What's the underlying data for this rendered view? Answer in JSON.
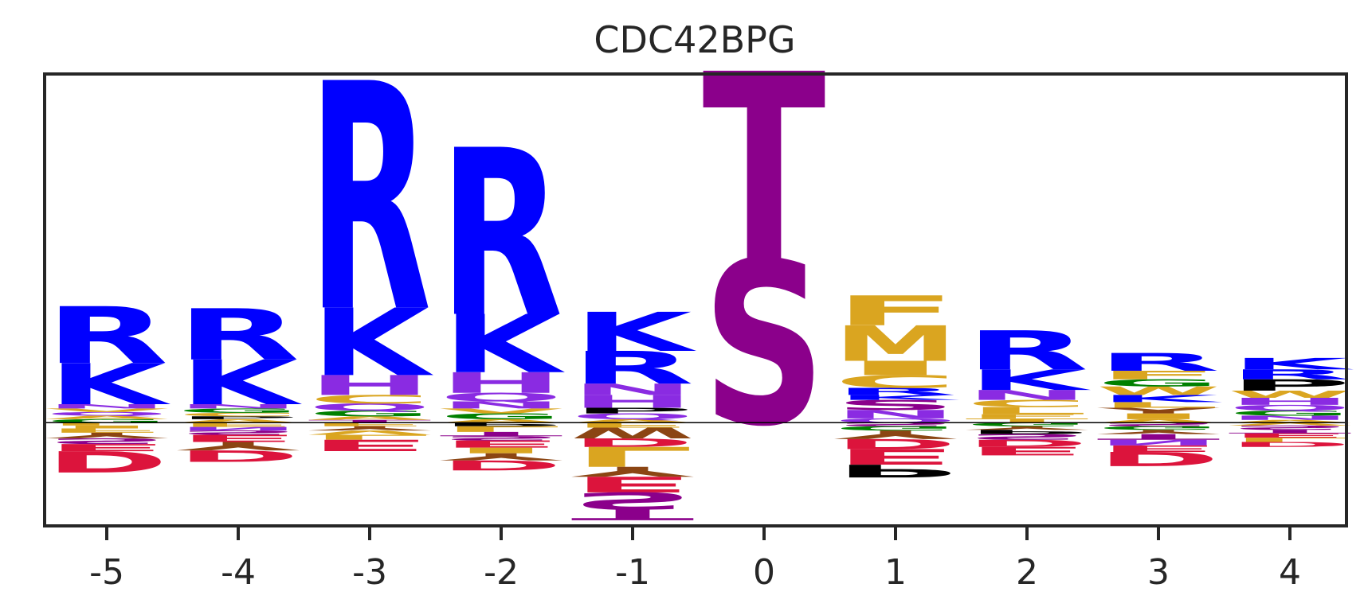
{
  "chart_data": {
    "type": "sequence-logo",
    "title": "CDC42BPG",
    "xlabel": "",
    "ylabel": "",
    "positions": [
      -5,
      -4,
      -3,
      -2,
      -1,
      0,
      1,
      2,
      3,
      4
    ],
    "ylim": [
      -1.45,
      4.9
    ],
    "grid": false,
    "colors": {
      "basic": "#0000ff",
      "acidic": "#dc143c",
      "polar_st": "#8b008b",
      "hydrophobic": "#daa520",
      "aromatic": "#8b4513",
      "polar_nq": "#8a2be2",
      "glycine": "#008000",
      "proline": "#000000"
    },
    "stacks": [
      {
        "pos": -5,
        "up": [
          [
            "G",
            0.05,
            "glycine"
          ],
          [
            "A",
            0.05,
            "hydrophobic"
          ],
          [
            "Q",
            0.05,
            "polar_nq"
          ],
          [
            "V",
            0.05,
            "hydrophobic"
          ],
          [
            "N",
            0.06,
            "polar_nq"
          ],
          [
            "K",
            0.58,
            "basic"
          ],
          [
            "R",
            0.8,
            "basic"
          ]
        ],
        "down": [
          [
            "L",
            0.04,
            "hydrophobic"
          ],
          [
            "I",
            0.04,
            "hydrophobic"
          ],
          [
            "F",
            0.06,
            "hydrophobic"
          ],
          [
            "Y",
            0.08,
            "aromatic"
          ],
          [
            "S",
            0.08,
            "polar_st"
          ],
          [
            "E",
            0.1,
            "acidic"
          ],
          [
            "D",
            0.3,
            "acidic"
          ]
        ]
      },
      {
        "pos": -4,
        "up": [
          [
            "A",
            0.05,
            "hydrophobic"
          ],
          [
            "P",
            0.04,
            "proline"
          ],
          [
            "C",
            0.05,
            "hydrophobic"
          ],
          [
            "G",
            0.06,
            "glycine"
          ],
          [
            "N",
            0.06,
            "polar_nq"
          ],
          [
            "K",
            0.63,
            "basic"
          ],
          [
            "R",
            0.72,
            "basic"
          ]
        ],
        "down": [
          [
            "F",
            0.06,
            "hydrophobic"
          ],
          [
            "N",
            0.05,
            "polar_nq"
          ],
          [
            "S",
            0.06,
            "polar_st"
          ],
          [
            "E",
            0.1,
            "acidic"
          ],
          [
            "Y",
            0.12,
            "aromatic"
          ],
          [
            "D",
            0.16,
            "acidic"
          ]
        ]
      },
      {
        "pos": -3,
        "up": [
          [
            "T",
            0.04,
            "polar_st"
          ],
          [
            "A",
            0.05,
            "hydrophobic"
          ],
          [
            "G",
            0.08,
            "glycine"
          ],
          [
            "Q",
            0.1,
            "polar_nq"
          ],
          [
            "C",
            0.12,
            "hydrophobic"
          ],
          [
            "H",
            0.28,
            "polar_nq"
          ],
          [
            "K",
            0.95,
            "basic"
          ],
          [
            "R",
            3.2,
            "basic"
          ]
        ],
        "down": [
          [
            "F",
            0.05,
            "hydrophobic"
          ],
          [
            "Y",
            0.06,
            "aromatic"
          ],
          [
            "V",
            0.06,
            "hydrophobic"
          ],
          [
            "L",
            0.07,
            "hydrophobic"
          ],
          [
            "E",
            0.16,
            "acidic"
          ]
        ]
      },
      {
        "pos": -2,
        "up": [
          [
            "A",
            0.05,
            "hydrophobic"
          ],
          [
            "G",
            0.08,
            "glycine"
          ],
          [
            "V",
            0.07,
            "hydrophobic"
          ],
          [
            "N",
            0.1,
            "polar_nq"
          ],
          [
            "Q",
            0.12,
            "polar_nq"
          ],
          [
            "H",
            0.29,
            "polar_nq"
          ],
          [
            "K",
            0.82,
            "basic"
          ],
          [
            "R",
            2.35,
            "basic"
          ]
        ],
        "down": [
          [
            "P",
            0.05,
            "proline"
          ],
          [
            "L",
            0.08,
            "hydrophobic"
          ],
          [
            "T",
            0.06,
            "polar_st"
          ],
          [
            "S",
            0.06,
            "polar_st"
          ],
          [
            "E",
            0.1,
            "acidic"
          ],
          [
            "I",
            0.08,
            "hydrophobic"
          ],
          [
            "Y",
            0.1,
            "aromatic"
          ],
          [
            "D",
            0.14,
            "acidic"
          ]
        ]
      },
      {
        "pos": -1,
        "up": [
          [
            "A",
            0.05,
            "hydrophobic"
          ],
          [
            "Q",
            0.08,
            "polar_nq"
          ],
          [
            "P",
            0.08,
            "proline"
          ],
          [
            "H",
            0.18,
            "polar_nq"
          ],
          [
            "N",
            0.16,
            "polar_nq"
          ],
          [
            "R",
            0.46,
            "basic"
          ],
          [
            "K",
            0.55,
            "basic"
          ]
        ],
        "down": [
          [
            "F",
            0.07,
            "hydrophobic"
          ],
          [
            "W",
            0.15,
            "aromatic"
          ],
          [
            "D",
            0.12,
            "acidic"
          ],
          [
            "L",
            0.28,
            "hydrophobic"
          ],
          [
            "Y",
            0.14,
            "aromatic"
          ],
          [
            "E",
            0.22,
            "acidic"
          ],
          [
            "S",
            0.24,
            "polar_st"
          ],
          [
            "T",
            0.15,
            "polar_st"
          ]
        ]
      },
      {
        "pos": 0,
        "up": [
          [
            "S",
            2.3,
            "polar_st"
          ],
          [
            "T",
            2.65,
            "polar_st"
          ]
        ],
        "down": []
      },
      {
        "pos": 1,
        "up": [
          [
            "Q",
            0.06,
            "polar_nq"
          ],
          [
            "N",
            0.12,
            "polar_nq"
          ],
          [
            "S",
            0.14,
            "polar_st"
          ],
          [
            "K",
            0.07,
            "basic"
          ],
          [
            "R",
            0.1,
            "basic"
          ],
          [
            "C",
            0.18,
            "hydrophobic"
          ],
          [
            "I",
            0.2,
            "hydrophobic"
          ],
          [
            "M",
            0.5,
            "hydrophobic"
          ],
          [
            "F",
            0.42,
            "hydrophobic"
          ]
        ],
        "down": [
          [
            "S",
            0.05,
            "polar_st"
          ],
          [
            "G",
            0.06,
            "glycine"
          ],
          [
            "Y",
            0.12,
            "aromatic"
          ],
          [
            "D",
            0.14,
            "acidic"
          ],
          [
            "E",
            0.22,
            "acidic"
          ],
          [
            "P",
            0.18,
            "proline"
          ]
        ]
      },
      {
        "pos": 2,
        "up": [
          [
            "T",
            0.06,
            "hydrophobic"
          ],
          [
            "F",
            0.06,
            "hydrophobic"
          ],
          [
            "L",
            0.1,
            "hydrophobic"
          ],
          [
            "C",
            0.1,
            "hydrophobic"
          ],
          [
            "N",
            0.14,
            "polar_nq"
          ],
          [
            "K",
            0.29,
            "basic"
          ],
          [
            "R",
            0.55,
            "basic"
          ]
        ],
        "down": [
          [
            "G",
            0.05,
            "glycine"
          ],
          [
            "Y",
            0.05,
            "aromatic"
          ],
          [
            "P",
            0.06,
            "proline"
          ],
          [
            "S",
            0.08,
            "polar_st"
          ],
          [
            "D",
            0.1,
            "acidic"
          ],
          [
            "E",
            0.12,
            "acidic"
          ]
        ]
      },
      {
        "pos": 3,
        "up": [
          [
            "A",
            0.05,
            "hydrophobic"
          ],
          [
            "I",
            0.08,
            "hydrophobic"
          ],
          [
            "Y",
            0.08,
            "aromatic"
          ],
          [
            "L",
            0.08,
            "hydrophobic"
          ],
          [
            "K",
            0.1,
            "basic"
          ],
          [
            "W",
            0.12,
            "hydrophobic"
          ],
          [
            "G",
            0.1,
            "glycine"
          ],
          [
            "F",
            0.12,
            "hydrophobic"
          ],
          [
            "R",
            0.25,
            "basic"
          ]
        ],
        "down": [
          [
            "S",
            0.05,
            "polar_st"
          ],
          [
            "G",
            0.05,
            "glycine"
          ],
          [
            "Y",
            0.06,
            "aromatic"
          ],
          [
            "T",
            0.08,
            "polar_st"
          ],
          [
            "N",
            0.08,
            "polar_nq"
          ],
          [
            "E",
            0.09,
            "acidic"
          ],
          [
            "D",
            0.2,
            "acidic"
          ]
        ]
      },
      {
        "pos": 4,
        "up": [
          [
            "A",
            0.04,
            "hydrophobic"
          ],
          [
            "N",
            0.06,
            "polar_nq"
          ],
          [
            "G",
            0.07,
            "glycine"
          ],
          [
            "Q",
            0.08,
            "polar_nq"
          ],
          [
            "H",
            0.1,
            "polar_nq"
          ],
          [
            "W",
            0.1,
            "hydrophobic"
          ],
          [
            "P",
            0.16,
            "proline"
          ],
          [
            "R",
            0.14,
            "basic"
          ],
          [
            "K",
            0.16,
            "basic"
          ]
        ],
        "down": [
          [
            "V",
            0.04,
            "hydrophobic"
          ],
          [
            "S",
            0.06,
            "polar_st"
          ],
          [
            "T",
            0.05,
            "polar_st"
          ],
          [
            "E",
            0.06,
            "acidic"
          ],
          [
            "L",
            0.06,
            "hydrophobic"
          ],
          [
            "D",
            0.07,
            "acidic"
          ]
        ]
      }
    ]
  }
}
